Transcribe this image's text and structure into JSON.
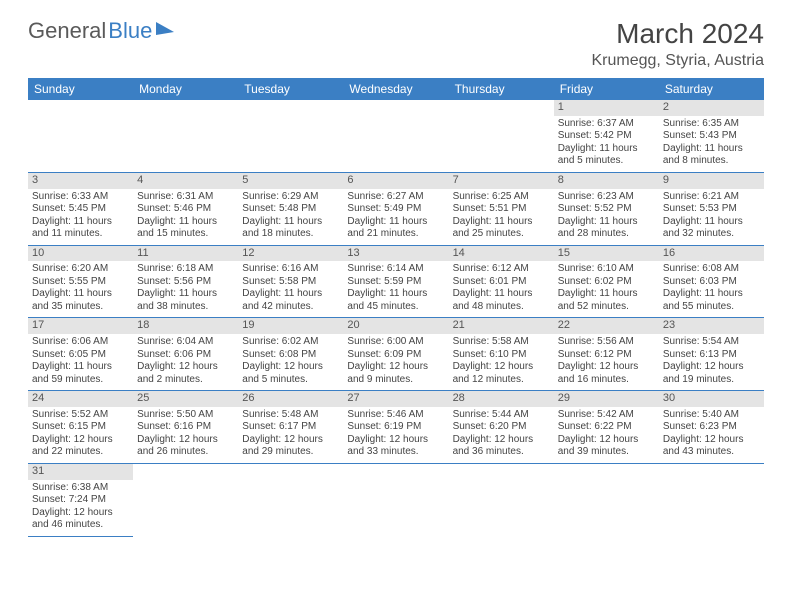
{
  "logo": {
    "text1": "General",
    "text2": "Blue"
  },
  "title": "March 2024",
  "location": "Krumegg, Styria, Austria",
  "weekdays": [
    "Sunday",
    "Monday",
    "Tuesday",
    "Wednesday",
    "Thursday",
    "Friday",
    "Saturday"
  ],
  "colors": {
    "header_bg": "#3b7fc4",
    "header_text": "#ffffff",
    "daynum_bg": "#e4e4e4",
    "row_border": "#3b7fc4",
    "body_text": "#444444"
  },
  "fonts": {
    "title_size_pt": 21,
    "location_size_pt": 12,
    "weekday_size_pt": 9,
    "cell_size_pt": 7.5
  },
  "layout": {
    "columns": 7,
    "rows": 6,
    "first_weekday_index": 5
  },
  "days": [
    {
      "n": 1,
      "sunrise": "6:37 AM",
      "sunset": "5:42 PM",
      "daylight": "11 hours and 5 minutes."
    },
    {
      "n": 2,
      "sunrise": "6:35 AM",
      "sunset": "5:43 PM",
      "daylight": "11 hours and 8 minutes."
    },
    {
      "n": 3,
      "sunrise": "6:33 AM",
      "sunset": "5:45 PM",
      "daylight": "11 hours and 11 minutes."
    },
    {
      "n": 4,
      "sunrise": "6:31 AM",
      "sunset": "5:46 PM",
      "daylight": "11 hours and 15 minutes."
    },
    {
      "n": 5,
      "sunrise": "6:29 AM",
      "sunset": "5:48 PM",
      "daylight": "11 hours and 18 minutes."
    },
    {
      "n": 6,
      "sunrise": "6:27 AM",
      "sunset": "5:49 PM",
      "daylight": "11 hours and 21 minutes."
    },
    {
      "n": 7,
      "sunrise": "6:25 AM",
      "sunset": "5:51 PM",
      "daylight": "11 hours and 25 minutes."
    },
    {
      "n": 8,
      "sunrise": "6:23 AM",
      "sunset": "5:52 PM",
      "daylight": "11 hours and 28 minutes."
    },
    {
      "n": 9,
      "sunrise": "6:21 AM",
      "sunset": "5:53 PM",
      "daylight": "11 hours and 32 minutes."
    },
    {
      "n": 10,
      "sunrise": "6:20 AM",
      "sunset": "5:55 PM",
      "daylight": "11 hours and 35 minutes."
    },
    {
      "n": 11,
      "sunrise": "6:18 AM",
      "sunset": "5:56 PM",
      "daylight": "11 hours and 38 minutes."
    },
    {
      "n": 12,
      "sunrise": "6:16 AM",
      "sunset": "5:58 PM",
      "daylight": "11 hours and 42 minutes."
    },
    {
      "n": 13,
      "sunrise": "6:14 AM",
      "sunset": "5:59 PM",
      "daylight": "11 hours and 45 minutes."
    },
    {
      "n": 14,
      "sunrise": "6:12 AM",
      "sunset": "6:01 PM",
      "daylight": "11 hours and 48 minutes."
    },
    {
      "n": 15,
      "sunrise": "6:10 AM",
      "sunset": "6:02 PM",
      "daylight": "11 hours and 52 minutes."
    },
    {
      "n": 16,
      "sunrise": "6:08 AM",
      "sunset": "6:03 PM",
      "daylight": "11 hours and 55 minutes."
    },
    {
      "n": 17,
      "sunrise": "6:06 AM",
      "sunset": "6:05 PM",
      "daylight": "11 hours and 59 minutes."
    },
    {
      "n": 18,
      "sunrise": "6:04 AM",
      "sunset": "6:06 PM",
      "daylight": "12 hours and 2 minutes."
    },
    {
      "n": 19,
      "sunrise": "6:02 AM",
      "sunset": "6:08 PM",
      "daylight": "12 hours and 5 minutes."
    },
    {
      "n": 20,
      "sunrise": "6:00 AM",
      "sunset": "6:09 PM",
      "daylight": "12 hours and 9 minutes."
    },
    {
      "n": 21,
      "sunrise": "5:58 AM",
      "sunset": "6:10 PM",
      "daylight": "12 hours and 12 minutes."
    },
    {
      "n": 22,
      "sunrise": "5:56 AM",
      "sunset": "6:12 PM",
      "daylight": "12 hours and 16 minutes."
    },
    {
      "n": 23,
      "sunrise": "5:54 AM",
      "sunset": "6:13 PM",
      "daylight": "12 hours and 19 minutes."
    },
    {
      "n": 24,
      "sunrise": "5:52 AM",
      "sunset": "6:15 PM",
      "daylight": "12 hours and 22 minutes."
    },
    {
      "n": 25,
      "sunrise": "5:50 AM",
      "sunset": "6:16 PM",
      "daylight": "12 hours and 26 minutes."
    },
    {
      "n": 26,
      "sunrise": "5:48 AM",
      "sunset": "6:17 PM",
      "daylight": "12 hours and 29 minutes."
    },
    {
      "n": 27,
      "sunrise": "5:46 AM",
      "sunset": "6:19 PM",
      "daylight": "12 hours and 33 minutes."
    },
    {
      "n": 28,
      "sunrise": "5:44 AM",
      "sunset": "6:20 PM",
      "daylight": "12 hours and 36 minutes."
    },
    {
      "n": 29,
      "sunrise": "5:42 AM",
      "sunset": "6:22 PM",
      "daylight": "12 hours and 39 minutes."
    },
    {
      "n": 30,
      "sunrise": "5:40 AM",
      "sunset": "6:23 PM",
      "daylight": "12 hours and 43 minutes."
    },
    {
      "n": 31,
      "sunrise": "6:38 AM",
      "sunset": "7:24 PM",
      "daylight": "12 hours and 46 minutes."
    }
  ]
}
